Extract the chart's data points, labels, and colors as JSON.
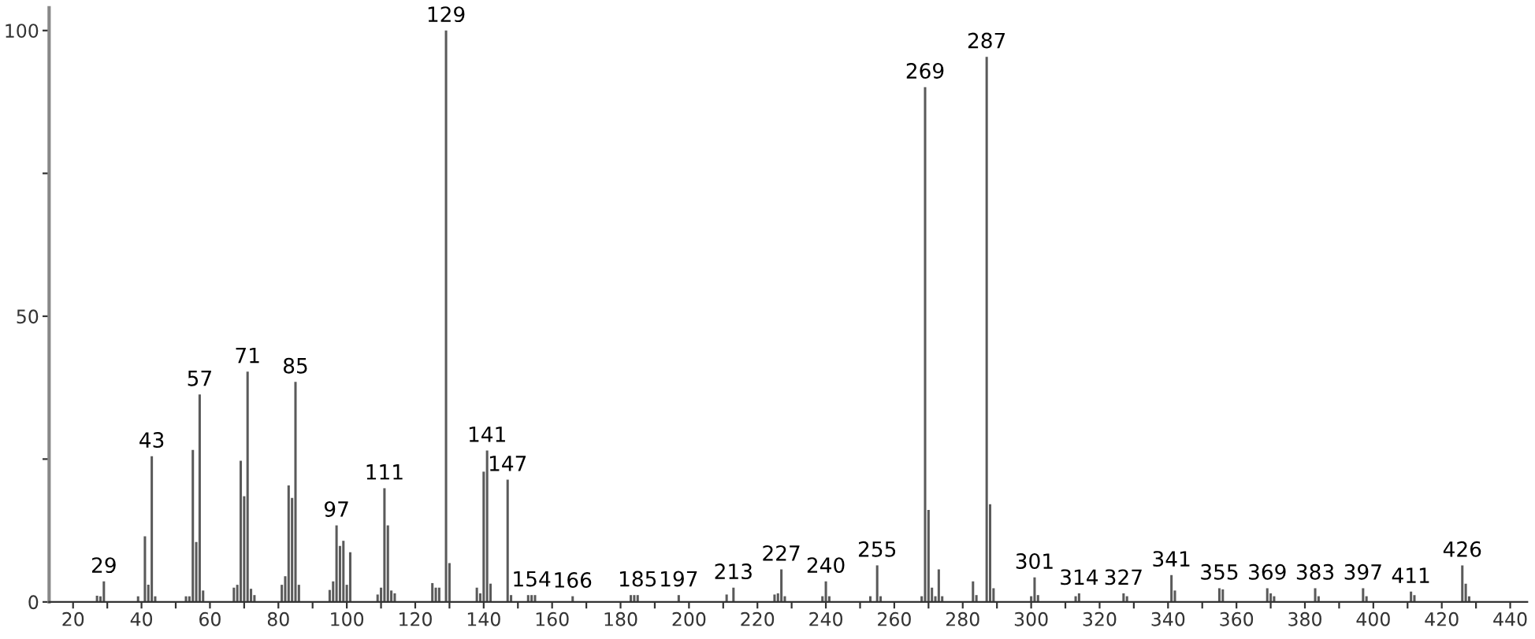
{
  "chart_data": {
    "type": "bar",
    "x": [
      27,
      28,
      29,
      39,
      41,
      42,
      43,
      44,
      53,
      54,
      55,
      56,
      57,
      58,
      67,
      68,
      69,
      70,
      71,
      72,
      73,
      81,
      82,
      83,
      84,
      85,
      86,
      95,
      96,
      97,
      98,
      99,
      100,
      101,
      109,
      110,
      111,
      112,
      113,
      114,
      125,
      126,
      127,
      129,
      130,
      138,
      139,
      140,
      141,
      142,
      147,
      148,
      153,
      154,
      155,
      166,
      183,
      184,
      185,
      197,
      211,
      213,
      225,
      226,
      227,
      228,
      239,
      240,
      241,
      253,
      255,
      256,
      268,
      269,
      270,
      271,
      272,
      273,
      274,
      283,
      284,
      287,
      288,
      289,
      300,
      301,
      302,
      313,
      314,
      327,
      328,
      341,
      342,
      355,
      356,
      369,
      370,
      371,
      383,
      384,
      397,
      398,
      411,
      412,
      426,
      427,
      428
    ],
    "values": [
      1.1,
      1,
      3.6,
      1,
      11.5,
      3,
      25.5,
      1,
      1,
      1,
      26.6,
      10.5,
      36.3,
      2,
      2.5,
      3,
      24.7,
      18.5,
      40.3,
      2.3,
      1.2,
      3,
      4.5,
      20.4,
      18.2,
      38.5,
      3,
      2.1,
      3.6,
      13.4,
      9.8,
      10.7,
      3,
      8.7,
      1.3,
      2.5,
      19.9,
      13.4,
      2,
      1.5,
      3.3,
      2.5,
      2.5,
      100,
      6.8,
      2.5,
      1.5,
      22.8,
      26.5,
      3.2,
      21.4,
      1.2,
      1.2,
      1.2,
      1.2,
      1,
      1.2,
      1.2,
      1.2,
      1.2,
      1.3,
      2.5,
      1.3,
      1.5,
      5.7,
      1,
      1,
      3.6,
      1,
      1,
      6.4,
      1,
      1,
      90.1,
      16.1,
      2.5,
      1,
      5.7,
      1,
      3.6,
      1.2,
      95.4,
      17.1,
      2.4,
      1,
      4.3,
      1.2,
      1,
      1.5,
      1.5,
      1,
      4.7,
      2,
      2.4,
      2.2,
      2.4,
      1.5,
      1,
      2.4,
      1,
      2.4,
      1,
      1.8,
      1.2,
      6.4,
      3.2,
      1
    ],
    "color": "#5a5a5a",
    "xlim": [
      13,
      445
    ],
    "ylim": [
      0,
      104
    ],
    "xticks": [
      20,
      {
        "value": 30,
        "label": null
      },
      40,
      {
        "value": 50,
        "label": null
      },
      60,
      {
        "value": 70,
        "label": null
      },
      80,
      {
        "value": 90,
        "label": null
      },
      100,
      {
        "value": 110,
        "label": null
      },
      120,
      {
        "value": 130,
        "label": null
      },
      140,
      {
        "value": 150,
        "label": null
      },
      160,
      {
        "value": 170,
        "label": null
      },
      180,
      {
        "value": 190,
        "label": null
      },
      200,
      {
        "value": 210,
        "label": null
      },
      220,
      {
        "value": 230,
        "label": null
      },
      240,
      {
        "value": 250,
        "label": null
      },
      260,
      {
        "value": 270,
        "label": null
      },
      280,
      {
        "value": 290,
        "label": null
      },
      300,
      {
        "value": 310,
        "label": null
      },
      320,
      {
        "value": 330,
        "label": null
      },
      340,
      {
        "value": 350,
        "label": null
      },
      360,
      {
        "value": 370,
        "label": null
      },
      380,
      {
        "value": 390,
        "label": null
      },
      400,
      {
        "value": 410,
        "label": null
      },
      420,
      {
        "value": 430,
        "label": null
      },
      440
    ],
    "yticks": [
      0,
      {
        "value": 25,
        "label": null
      },
      50,
      {
        "value": 75,
        "label": null
      },
      100
    ],
    "annotations": [
      {
        "text": "29",
        "x": 29,
        "y": 3.6
      },
      {
        "text": "43",
        "x": 43,
        "y": 25.5
      },
      {
        "text": "57",
        "x": 57,
        "y": 36.3
      },
      {
        "text": "71",
        "x": 71,
        "y": 40.3
      },
      {
        "text": "85",
        "x": 85,
        "y": 38.5
      },
      {
        "text": "97",
        "x": 97,
        "y": 13.4
      },
      {
        "text": "111",
        "x": 111,
        "y": 19.9
      },
      {
        "text": "129",
        "x": 129,
        "y": 100
      },
      {
        "text": "141",
        "x": 141,
        "y": 26.5
      },
      {
        "text": "147",
        "x": 147,
        "y": 21.4
      },
      {
        "text": "154",
        "x": 154,
        "y": 1.2
      },
      {
        "text": "166",
        "x": 166,
        "y": 1
      },
      {
        "text": "185",
        "x": 185,
        "y": 1.2
      },
      {
        "text": "197",
        "x": 197,
        "y": 1.2
      },
      {
        "text": "213",
        "x": 213,
        "y": 2.5
      },
      {
        "text": "227",
        "x": 227,
        "y": 5.7
      },
      {
        "text": "240",
        "x": 240,
        "y": 3.6
      },
      {
        "text": "255",
        "x": 255,
        "y": 6.4
      },
      {
        "text": "269",
        "x": 269,
        "y": 90.1
      },
      {
        "text": "287",
        "x": 287,
        "y": 95.4
      },
      {
        "text": "301",
        "x": 301,
        "y": 4.3
      },
      {
        "text": "314",
        "x": 314,
        "y": 1.5
      },
      {
        "text": "327",
        "x": 327,
        "y": 1.5
      },
      {
        "text": "341",
        "x": 341,
        "y": 4.7
      },
      {
        "text": "355",
        "x": 355,
        "y": 2.4
      },
      {
        "text": "369",
        "x": 369,
        "y": 2.4
      },
      {
        "text": "383",
        "x": 383,
        "y": 2.4
      },
      {
        "text": "397",
        "x": 397,
        "y": 2.4
      },
      {
        "text": "411",
        "x": 411,
        "y": 1.8
      },
      {
        "text": "426",
        "x": 426,
        "y": 6.4
      }
    ]
  }
}
